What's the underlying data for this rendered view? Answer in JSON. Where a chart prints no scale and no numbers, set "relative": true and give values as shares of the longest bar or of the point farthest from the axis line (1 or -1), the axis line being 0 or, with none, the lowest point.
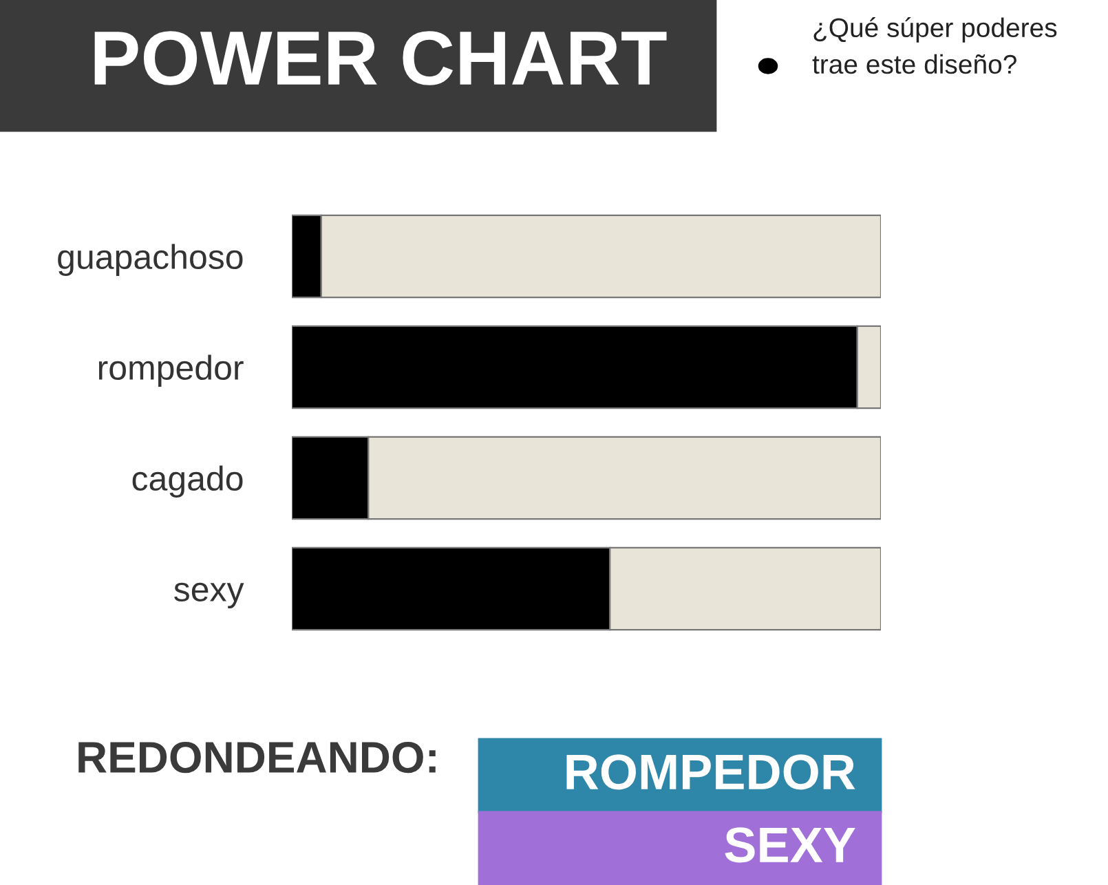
{
  "chart_data": {
    "type": "bar",
    "orientation": "horizontal",
    "stacked": true,
    "relative": true,
    "title": "POWER CHART",
    "subtitle": "¿Qué súper poderes trae este diseño?",
    "categories": [
      "guapachoso",
      "rompedor",
      "cagado",
      "sexy"
    ],
    "series": [
      {
        "color": "#000000",
        "values": [
          0.05,
          0.96,
          0.13,
          0.54
        ]
      },
      {
        "color": "#e8e4d8",
        "values": [
          0.95,
          0.04,
          0.87,
          0.46
        ]
      }
    ],
    "annotations": [
      "REDONDEANDO:",
      "ROMPEDOR",
      "SEXY"
    ],
    "grid": false,
    "legend": false
  }
}
